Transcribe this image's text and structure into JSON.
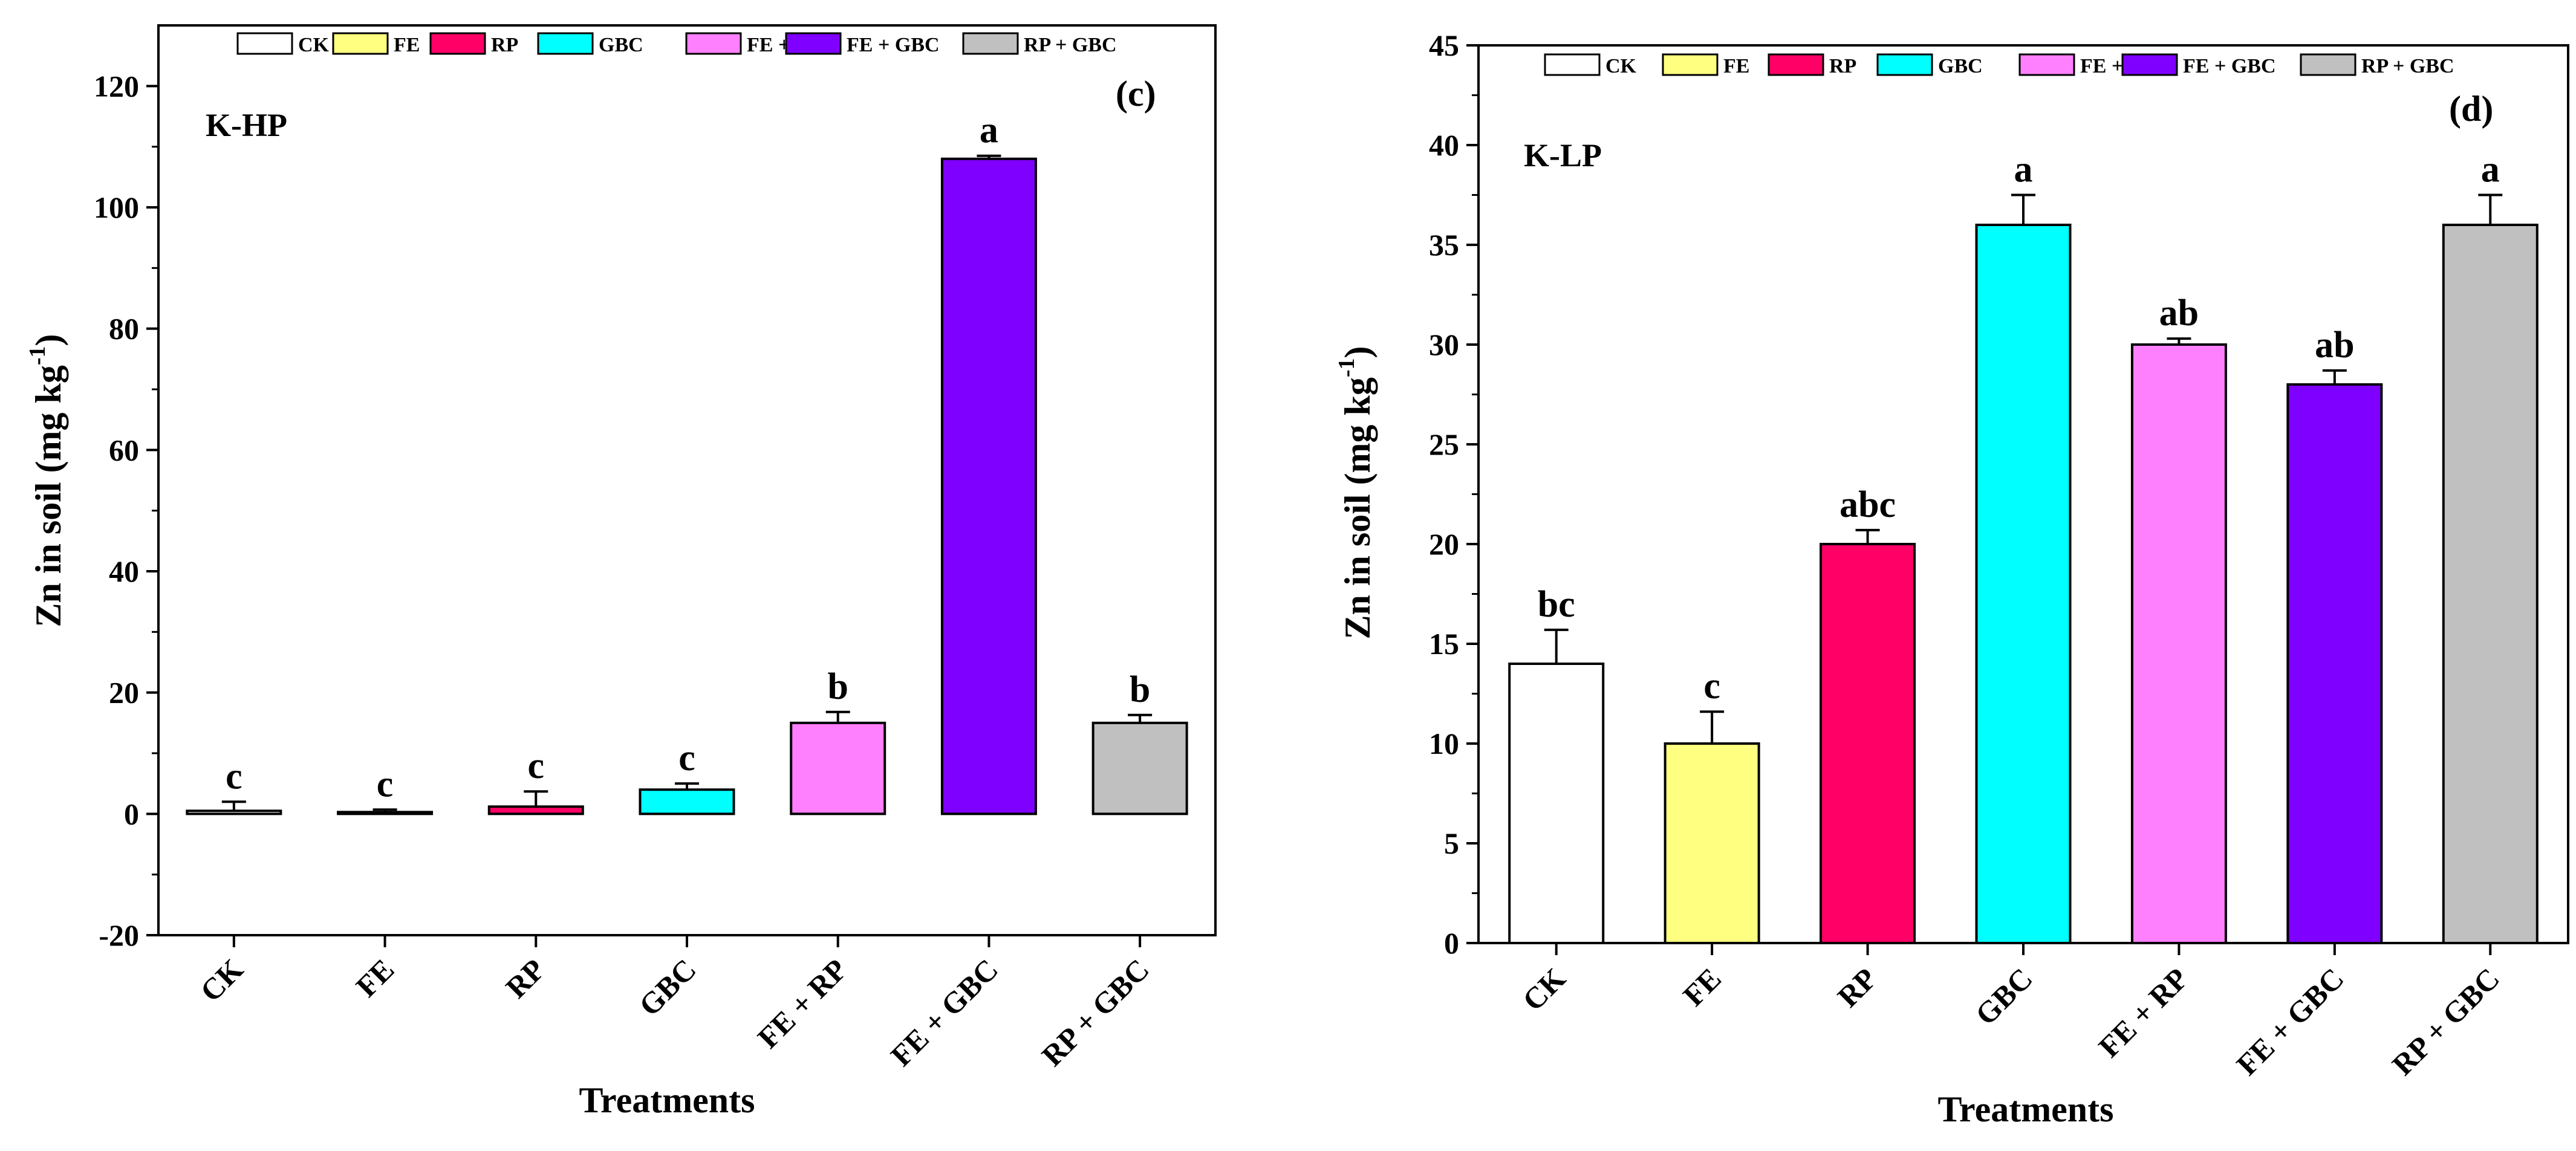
{
  "chart_data": [
    {
      "type": "bar",
      "panel_label": "(c)",
      "site_label": "K-HP",
      "categories": [
        "CK",
        "FE",
        "RP",
        "GBC",
        "FE + RP",
        "FE + GBC",
        "RP + GBC"
      ],
      "values": [
        0.5,
        0.3,
        1.2,
        4.0,
        15.0,
        108.0,
        15.0
      ],
      "errors": [
        1.5,
        0.4,
        2.5,
        1.0,
        1.8,
        0.5,
        1.3
      ],
      "letters": [
        "c",
        "c",
        "c",
        "c",
        "b",
        "a",
        "b"
      ],
      "colors": [
        "#ffffff",
        "#ffff80",
        "#ff0066",
        "#00ffff",
        "#ff80ff",
        "#8000ff",
        "#c0c0c0"
      ],
      "xlabel": "Treatments",
      "ylabel_main": "Zn in soil (mg kg",
      "ylabel_sup": "-1",
      "ylabel_end": ")",
      "ylim": [
        -20,
        130
      ],
      "yticks": [
        -20,
        0,
        20,
        40,
        60,
        80,
        100,
        120
      ],
      "ytick_labels": [
        "-20",
        "0",
        "20",
        "40",
        "60",
        "80",
        "100",
        "120"
      ],
      "legend": [
        "CK",
        "FE",
        "RP",
        "GBC",
        "FE + RP",
        "FE + GBC",
        "RP + GBC"
      ],
      "legend_position": "top"
    },
    {
      "type": "bar",
      "panel_label": "(d)",
      "site_label": "K-LP",
      "categories": [
        "CK",
        "FE",
        "RP",
        "GBC",
        "FE + RP",
        "FE + GBC",
        "RP + GBC"
      ],
      "values": [
        14,
        10,
        20,
        36,
        30,
        28,
        36
      ],
      "errors": [
        1.7,
        1.6,
        0.7,
        1.5,
        0.3,
        0.7,
        1.5
      ],
      "letters": [
        "bc",
        "c",
        "abc",
        "a",
        "ab",
        "ab",
        "a"
      ],
      "colors": [
        "#ffffff",
        "#ffff80",
        "#ff0066",
        "#00ffff",
        "#ff80ff",
        "#8000ff",
        "#c0c0c0"
      ],
      "xlabel": "Treatments",
      "ylabel_main": "Zn in soil (mg kg",
      "ylabel_sup": "-1",
      "ylabel_end": ")",
      "ylim": [
        0,
        45
      ],
      "yticks": [
        0,
        5,
        10,
        15,
        20,
        25,
        30,
        35,
        40,
        45
      ],
      "ytick_labels": [
        "0",
        "5",
        "10",
        "15",
        "20",
        "25",
        "30",
        "35",
        "40",
        "45"
      ],
      "legend": [
        "CK",
        "FE",
        "RP",
        "GBC",
        "FE + RP",
        "FE + GBC",
        "RP + GBC"
      ],
      "legend_position": "top"
    }
  ]
}
